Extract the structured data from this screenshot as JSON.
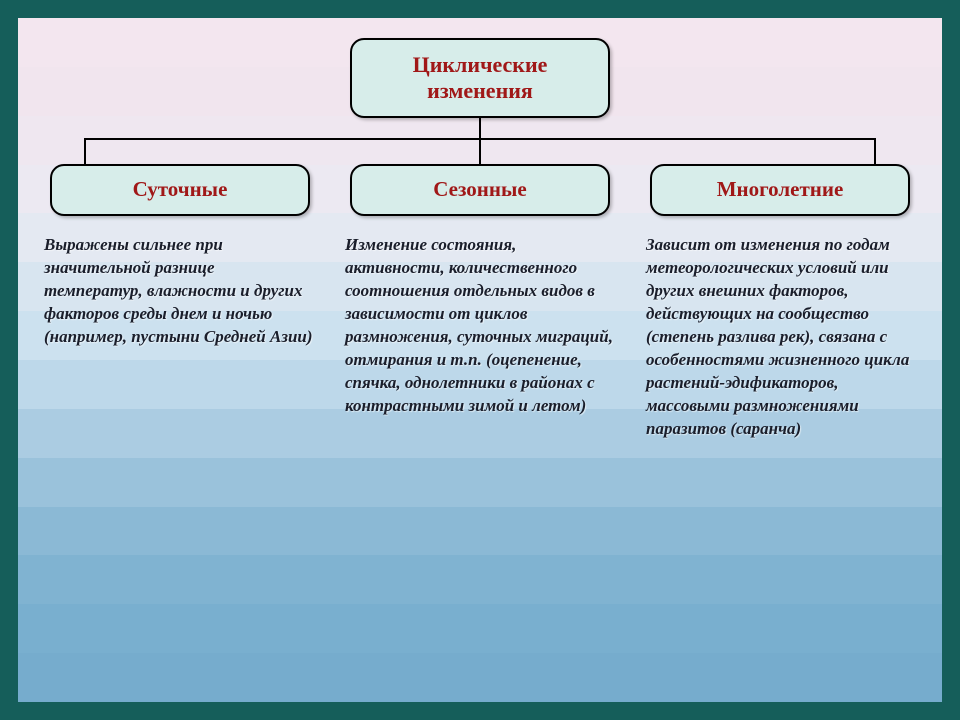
{
  "frame": {
    "background_color": "#155e5a"
  },
  "slide": {
    "band_colors": [
      "#f3e6ef",
      "#f1e5ee",
      "#efe7f0",
      "#ece9f2",
      "#e4e9f2",
      "#d8e5f0",
      "#cce1ef",
      "#bdd8ea",
      "#abcce2",
      "#9ac2db",
      "#8bb9d5",
      "#80b3d1",
      "#79afcf",
      "#76accd"
    ]
  },
  "diagram": {
    "node_fill": "#d7edea",
    "node_border": "#000000",
    "node_text_color": "#a01818",
    "connector_color": "#000000",
    "root": {
      "line1": "Циклические",
      "line2": "изменения"
    },
    "children": [
      {
        "label": "Суточные"
      },
      {
        "label": "Сезонные"
      },
      {
        "label": "Многолетние"
      }
    ],
    "descriptions": [
      "Выражены сильнее при значительной разнице температур, влажности и других факторов среды днем и ночью (например, пустыни Средней Азии)",
      "Изменение состояния, активности, количественного соотношения отдельных видов в зависимости от циклов размножения, суточных миграций, отмирания и т.п. (оцепенение, спячка, однолетники в районах с контрастными зимой и летом)",
      "Зависит от изменения по годам метеорологических условий или других внешних факторов, действующих на сообщество (степень разлива рек), связана с особенностями жизненного цикла растений-эдификаторов, массовыми размножениями паразитов (саранча)"
    ],
    "description_text_color": "#1a1e2b"
  }
}
